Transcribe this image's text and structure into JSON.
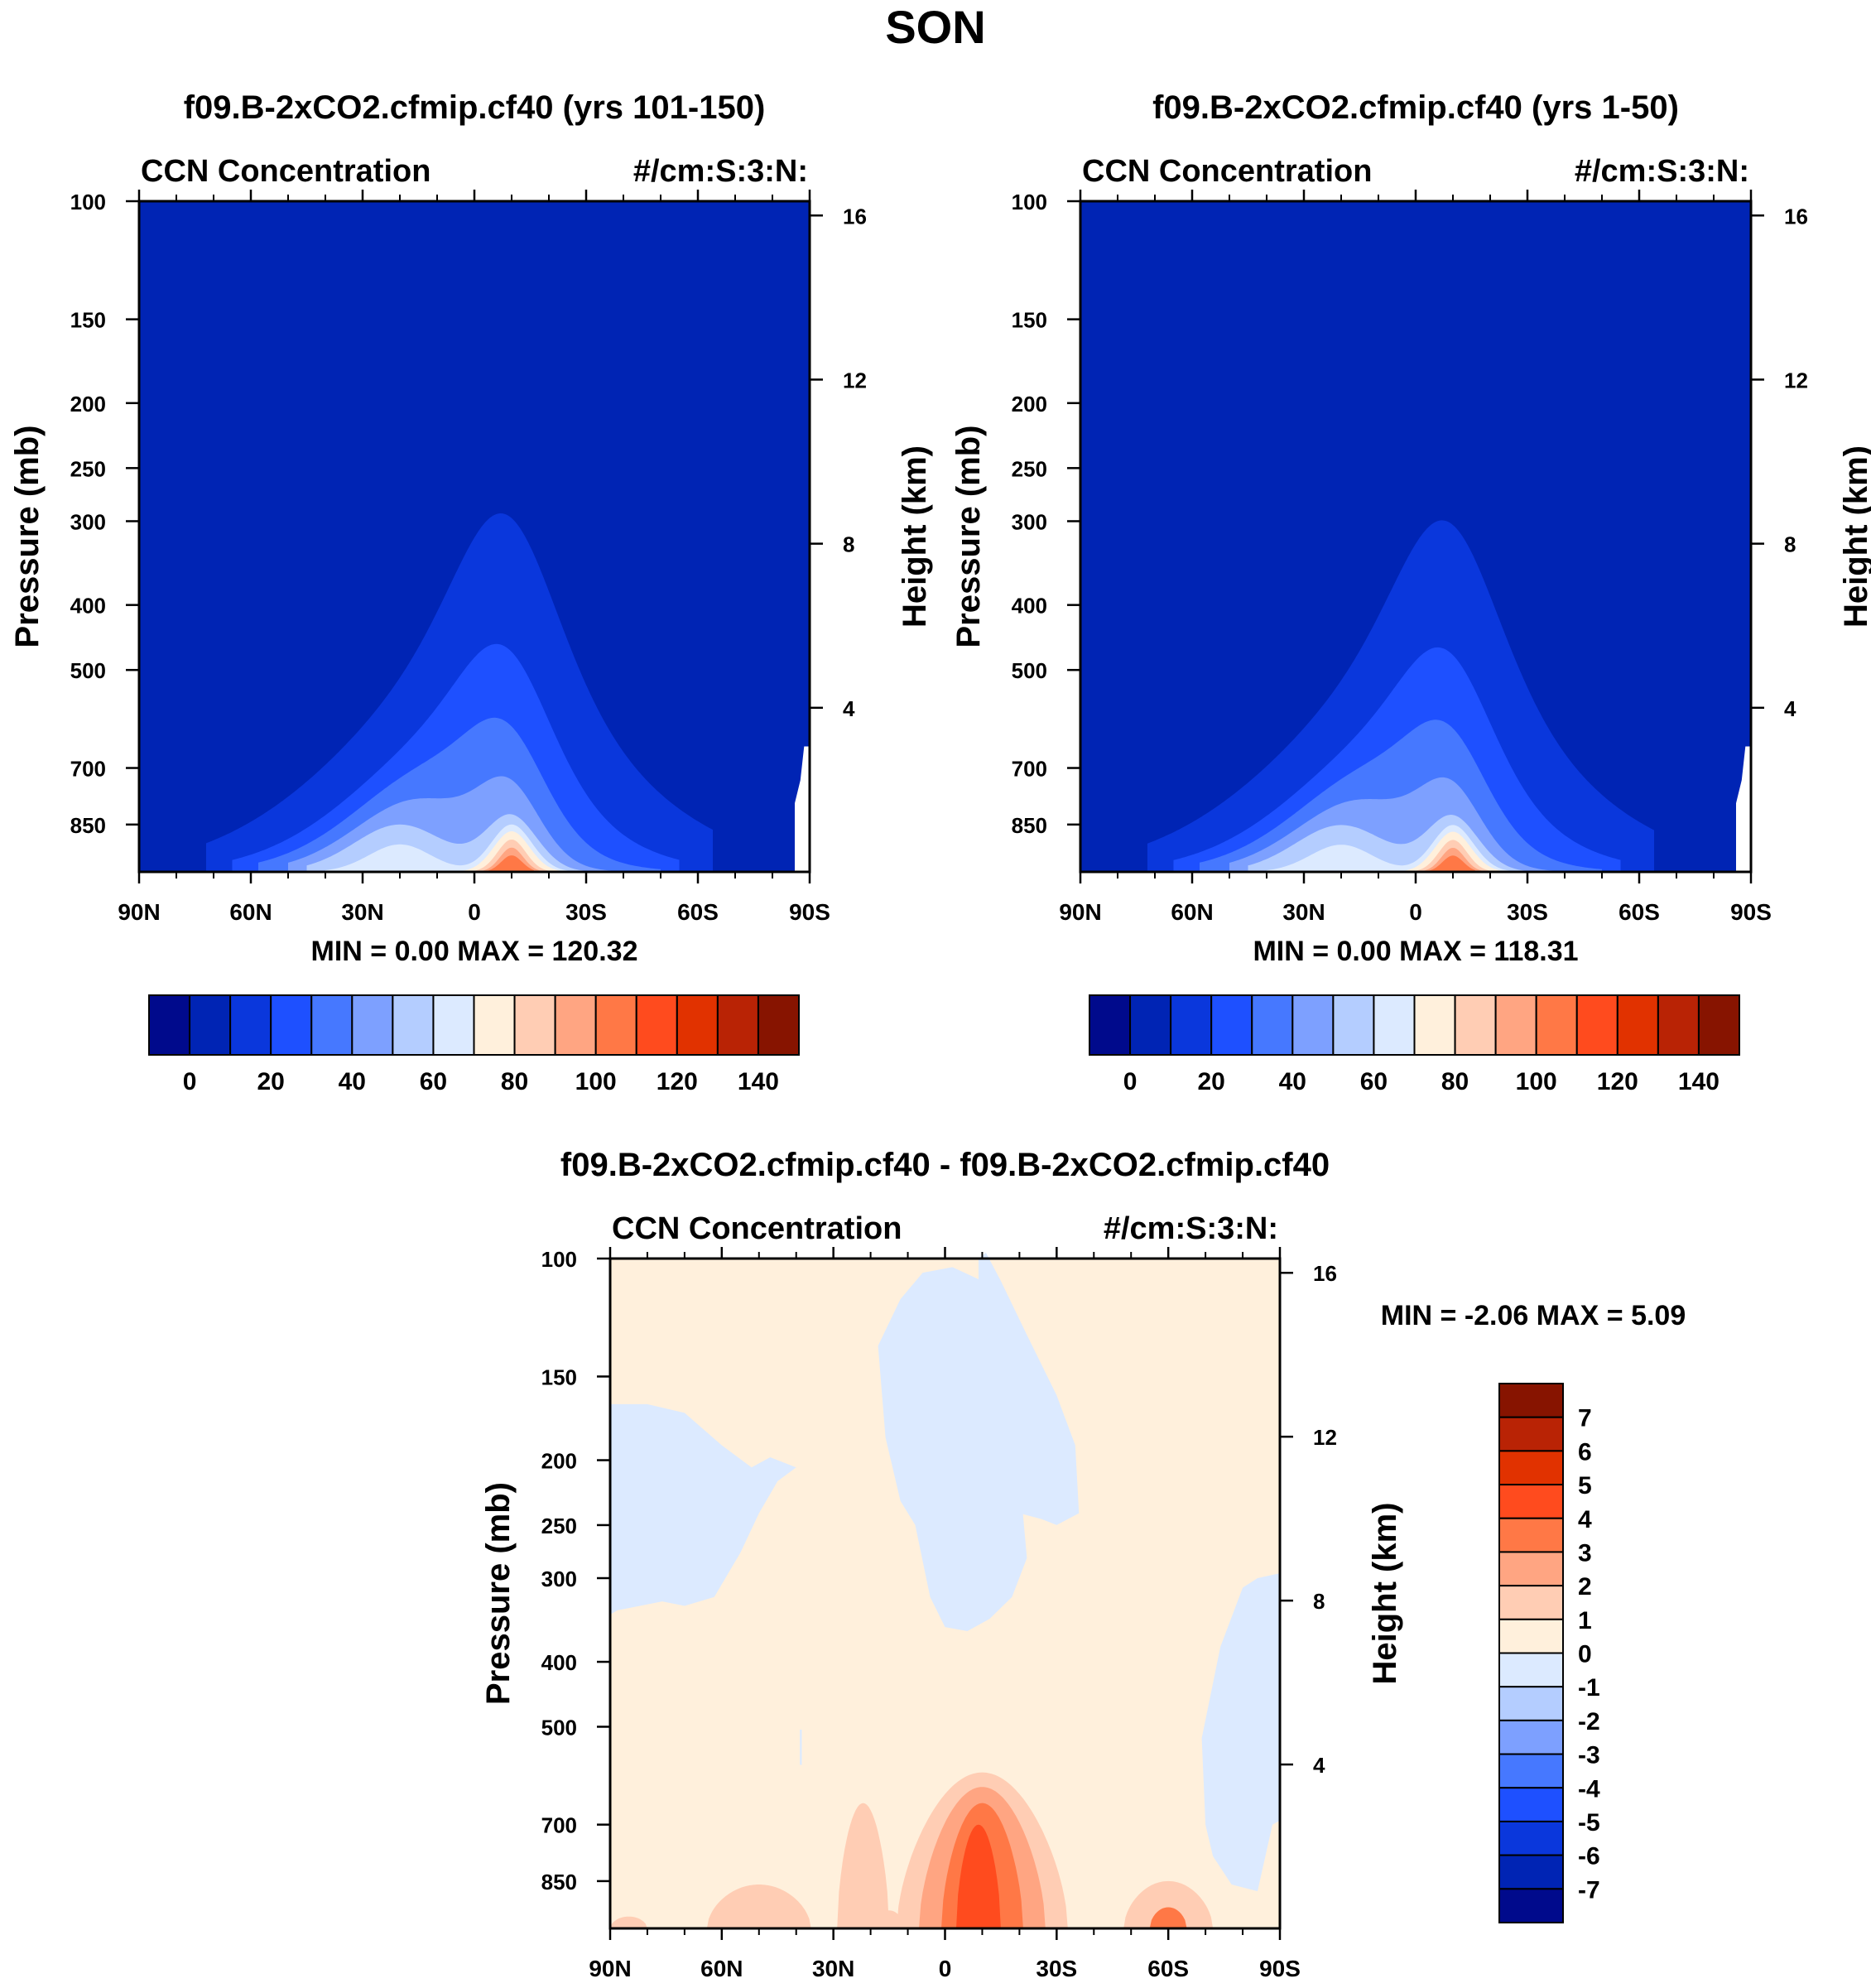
{
  "page_title": "SON",
  "chart_data": [
    {
      "type": "contour",
      "id": "panel-a",
      "title": "f09.B-2xCO2.cfmip.cf40 (yrs 101-150)",
      "left_label": "CCN Concentration",
      "right_label": "#/cm:S:3:N:",
      "xlabel": "",
      "ylabel": "Pressure (mb)",
      "ylabel_right": "Height (km)",
      "x_ticks": [
        "90N",
        "60N",
        "30N",
        "0",
        "30S",
        "60S",
        "90S"
      ],
      "y_ticks": [
        100,
        150,
        200,
        250,
        300,
        400,
        500,
        700,
        850
      ],
      "y_ticks_right": [
        16,
        12,
        8,
        4
      ],
      "ylim": [
        100,
        1000
      ],
      "y_scale": "log-pressure",
      "stats": "MIN =   0.00  MAX = 120.32",
      "min": 0.0,
      "max": 120.32,
      "colorbar": {
        "orientation": "horizontal",
        "labels": [
          "0",
          "20",
          "40",
          "60",
          "80",
          "100",
          "120",
          "140"
        ],
        "colors": [
          "#000a8c",
          "#0024b4",
          "#0a37dc",
          "#1e50ff",
          "#4678ff",
          "#7da0ff",
          "#b4cdff",
          "#dceaff",
          "#fff0dc",
          "#ffcdb4",
          "#ffa582",
          "#ff7846",
          "#ff4b1e",
          "#e13200",
          "#b92305",
          "#871400"
        ]
      }
    },
    {
      "type": "contour",
      "id": "panel-b",
      "title": "f09.B-2xCO2.cfmip.cf40 (yrs 1-50)",
      "left_label": "CCN Concentration",
      "right_label": "#/cm:S:3:N:",
      "xlabel": "",
      "ylabel": "Pressure (mb)",
      "ylabel_right": "Height (km)",
      "x_ticks": [
        "90N",
        "60N",
        "30N",
        "0",
        "30S",
        "60S",
        "90S"
      ],
      "y_ticks": [
        100,
        150,
        200,
        250,
        300,
        400,
        500,
        700,
        850
      ],
      "y_ticks_right": [
        16,
        12,
        8,
        4
      ],
      "ylim": [
        100,
        1000
      ],
      "y_scale": "log-pressure",
      "stats": "MIN =   0.00  MAX = 118.31",
      "min": 0.0,
      "max": 118.31,
      "colorbar": {
        "orientation": "horizontal",
        "labels": [
          "0",
          "20",
          "40",
          "60",
          "80",
          "100",
          "120",
          "140"
        ],
        "colors": [
          "#000a8c",
          "#0024b4",
          "#0a37dc",
          "#1e50ff",
          "#4678ff",
          "#7da0ff",
          "#b4cdff",
          "#dceaff",
          "#fff0dc",
          "#ffcdb4",
          "#ffa582",
          "#ff7846",
          "#ff4b1e",
          "#e13200",
          "#b92305",
          "#871400"
        ]
      }
    },
    {
      "type": "contour",
      "id": "panel-c",
      "title": "f09.B-2xCO2.cfmip.cf40 - f09.B-2xCO2.cfmip.cf40",
      "left_label": "CCN Concentration",
      "right_label": "#/cm:S:3:N:",
      "xlabel": "",
      "ylabel": "Pressure (mb)",
      "ylabel_right": "Height (km)",
      "x_ticks": [
        "90N",
        "60N",
        "30N",
        "0",
        "30S",
        "60S",
        "90S"
      ],
      "y_ticks": [
        100,
        150,
        200,
        250,
        300,
        400,
        500,
        700,
        850
      ],
      "y_ticks_right": [
        16,
        12,
        8,
        4
      ],
      "ylim": [
        100,
        1000
      ],
      "y_scale": "log-pressure",
      "stats": "MIN =  -2.06  MAX =   5.09",
      "min": -2.06,
      "max": 5.09,
      "colorbar": {
        "orientation": "vertical",
        "labels": [
          "7",
          "6",
          "5",
          "4",
          "3",
          "2",
          "1",
          "0",
          "-1",
          "-2",
          "-3",
          "-4",
          "-5",
          "-6",
          "-7"
        ],
        "colors": [
          "#871400",
          "#b92305",
          "#e13200",
          "#ff4b1e",
          "#ff7846",
          "#ffa582",
          "#ffcdb4",
          "#fff0dc",
          "#dceaff",
          "#b4cdff",
          "#7da0ff",
          "#4678ff",
          "#1e50ff",
          "#0a37dc",
          "#0024b4",
          "#000a8c"
        ]
      }
    }
  ]
}
